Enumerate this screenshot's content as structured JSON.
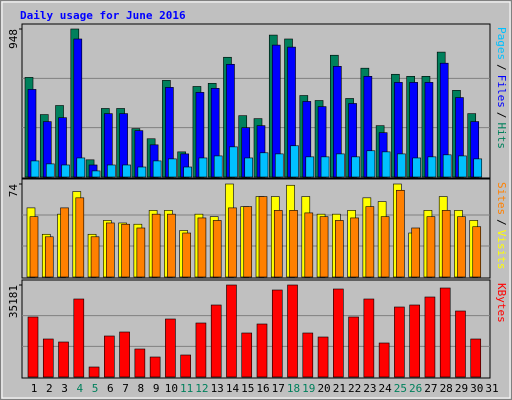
{
  "chart_data": {
    "type": "bar",
    "title": "Daily usage for June 2016",
    "categories": [
      "1",
      "2",
      "3",
      "4",
      "5",
      "6",
      "7",
      "8",
      "9",
      "10",
      "11",
      "12",
      "13",
      "14",
      "15",
      "16",
      "17",
      "18",
      "19",
      "20",
      "21",
      "22",
      "23",
      "24",
      "25",
      "26",
      "27",
      "28",
      "29",
      "30",
      "31"
    ],
    "category_colors": [
      "#000000",
      "#000000",
      "#000000",
      "#00805c",
      "#00805c",
      "#000000",
      "#000000",
      "#000000",
      "#000000",
      "#000000",
      "#00805c",
      "#00805c",
      "#000000",
      "#000000",
      "#000000",
      "#000000",
      "#000000",
      "#00805c",
      "#00805c",
      "#000000",
      "#000000",
      "#000000",
      "#000000",
      "#000000",
      "#00805c",
      "#00805c",
      "#000000",
      "#000000",
      "#000000",
      "#000000",
      "#000000"
    ],
    "legend_separator": "/",
    "panels": [
      {
        "ylim": [
          0,
          948
        ],
        "yticks": [
          948
        ],
        "grid_divisions": 3,
        "series": [
          {
            "name": "Hits",
            "color": "#00805c",
            "values": [
              638,
              400,
              458,
              948,
              110,
              439,
              439,
              310,
              245,
              619,
              161,
              580,
              600,
              767,
              393,
              374,
              909,
              884,
              522,
              490,
              780,
              503,
              697,
              329,
              658,
              645,
              645,
              800,
              555,
              406,
              null
            ]
          },
          {
            "name": "Files",
            "color": "#0000ff",
            "values": [
              561,
              355,
              380,
              884,
              77,
              406,
              406,
              297,
              206,
              574,
              148,
              542,
              568,
              722,
              316,
              329,
              845,
              832,
              484,
              451,
              709,
              471,
              645,
              284,
              606,
              606,
              606,
              729,
              509,
              355,
              null
            ]
          },
          {
            "name": "Pages",
            "color": "#00c0ff",
            "values": [
              103,
              84,
              77,
              122,
              39,
              77,
              77,
              64,
              103,
              116,
              64,
              122,
              135,
              193,
              122,
              155,
              148,
              200,
              129,
              129,
              148,
              129,
              168,
              161,
              148,
              122,
              129,
              142,
              135,
              116,
              null
            ]
          }
        ]
      },
      {
        "ylim": [
          0,
          74
        ],
        "yticks": [
          74
        ],
        "grid_divisions": 3,
        "series": [
          {
            "name": "Visits",
            "color": "#ffff00",
            "values": [
              55,
              34,
              50,
              68,
              34,
              45,
              43,
              42,
              53,
              53,
              37,
              50,
              48,
              74,
              56,
              64,
              64,
              73,
              64,
              50,
              50,
              53,
              63,
              60,
              74,
              35,
              53,
              64,
              53,
              45,
              null
            ]
          },
          {
            "name": "Sites",
            "color": "#ff8000",
            "values": [
              48,
              32,
              55,
              63,
              32,
              43,
              42,
              39,
              50,
              50,
              35,
              47,
              45,
              55,
              56,
              64,
              53,
              53,
              51,
              48,
              45,
              47,
              56,
              48,
              69,
              39,
              48,
              53,
              48,
              40,
              null
            ]
          }
        ]
      },
      {
        "ylim": [
          0,
          35181
        ],
        "yticks": [
          35181
        ],
        "grid_divisions": 3,
        "series": [
          {
            "name": "KBytes",
            "color": "#ff0000",
            "values": [
              22944,
              14531,
              13384,
              29827,
              3824,
              15679,
              17208,
              10707,
              7648,
              22180,
              8413,
              20650,
              27533,
              35181,
              16826,
              20267,
              33269,
              35181,
              16826,
              15296,
              33651,
              22944,
              29827,
              13002,
              26768,
              27533,
              30592,
              34034,
              25239,
              14531,
              null
            ]
          }
        ]
      }
    ]
  }
}
